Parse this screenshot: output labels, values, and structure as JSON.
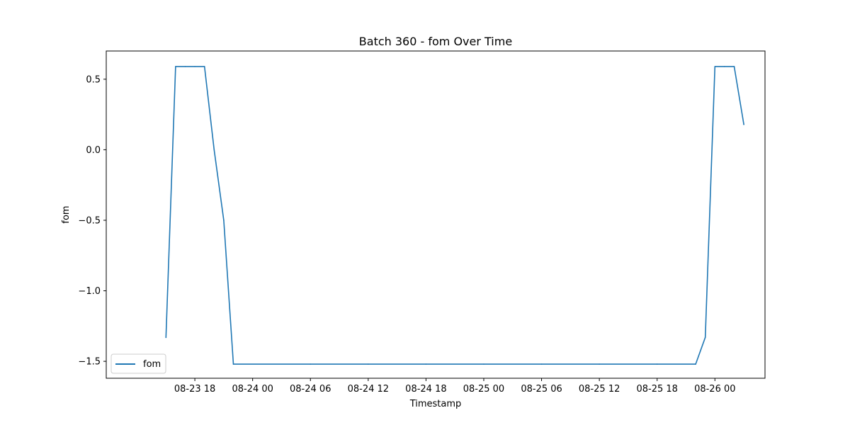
{
  "chart_data": {
    "type": "line",
    "title": "Batch 360 - fom Over Time",
    "xlabel": "Timestamp",
    "ylabel": "fom",
    "xlim": [
      "2023-08-23 08:48",
      "2023-08-26 05:12"
    ],
    "ylim": [
      -1.62,
      0.7
    ],
    "x_ticks": [
      {
        "value": "2023-08-23 18:00",
        "label": "08-23 18"
      },
      {
        "value": "2023-08-24 00:00",
        "label": "08-24 00"
      },
      {
        "value": "2023-08-24 06:00",
        "label": "08-24 06"
      },
      {
        "value": "2023-08-24 12:00",
        "label": "08-24 12"
      },
      {
        "value": "2023-08-24 18:00",
        "label": "08-24 18"
      },
      {
        "value": "2023-08-25 00:00",
        "label": "08-25 00"
      },
      {
        "value": "2023-08-25 06:00",
        "label": "08-25 06"
      },
      {
        "value": "2023-08-25 12:00",
        "label": "08-25 12"
      },
      {
        "value": "2023-08-25 18:00",
        "label": "08-25 18"
      },
      {
        "value": "2023-08-26 00:00",
        "label": "08-26 00"
      }
    ],
    "y_ticks": [
      {
        "value": 0.5,
        "label": "0.5"
      },
      {
        "value": 0.0,
        "label": "0.0"
      },
      {
        "value": -0.5,
        "label": "−0.5"
      },
      {
        "value": -1.0,
        "label": "−1.0"
      },
      {
        "value": -1.5,
        "label": "−1.5"
      }
    ],
    "grid": false,
    "legend_position": "lower-left",
    "series": [
      {
        "name": "fom",
        "color": "#1f77b4",
        "points": [
          {
            "x": "2023-08-23 15:00",
            "y": -1.33
          },
          {
            "x": "2023-08-23 16:00",
            "y": 0.59
          },
          {
            "x": "2023-08-23 17:00",
            "y": 0.59
          },
          {
            "x": "2023-08-23 18:00",
            "y": 0.59
          },
          {
            "x": "2023-08-23 19:00",
            "y": 0.59
          },
          {
            "x": "2023-08-23 20:00",
            "y": 0.0
          },
          {
            "x": "2023-08-23 21:00",
            "y": -0.5
          },
          {
            "x": "2023-08-23 22:00",
            "y": -1.52
          },
          {
            "x": "2023-08-24 06:00",
            "y": -1.52
          },
          {
            "x": "2023-08-24 12:00",
            "y": -1.52
          },
          {
            "x": "2023-08-24 18:00",
            "y": -1.52
          },
          {
            "x": "2023-08-25 00:00",
            "y": -1.52
          },
          {
            "x": "2023-08-25 06:00",
            "y": -1.52
          },
          {
            "x": "2023-08-25 12:00",
            "y": -1.52
          },
          {
            "x": "2023-08-25 18:00",
            "y": -1.52
          },
          {
            "x": "2023-08-25 22:00",
            "y": -1.52
          },
          {
            "x": "2023-08-25 23:00",
            "y": -1.33
          },
          {
            "x": "2023-08-26 00:00",
            "y": 0.59
          },
          {
            "x": "2023-08-26 01:00",
            "y": 0.59
          },
          {
            "x": "2023-08-26 02:00",
            "y": 0.59
          },
          {
            "x": "2023-08-26 03:00",
            "y": 0.18
          }
        ]
      }
    ]
  }
}
